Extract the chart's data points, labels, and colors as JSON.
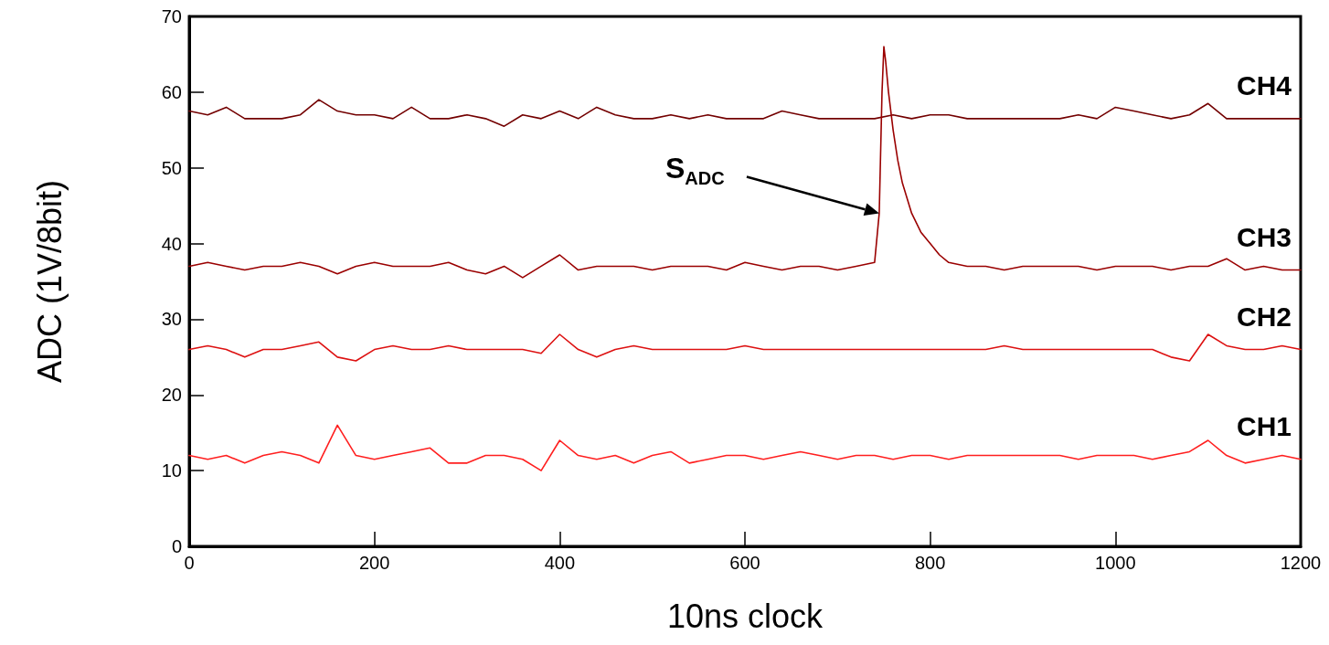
{
  "chart_data": {
    "type": "line",
    "xlabel": "10ns clock",
    "ylabel": "ADC (1V/8bit)",
    "x": [
      0,
      20,
      40,
      60,
      80,
      100,
      120,
      140,
      160,
      180,
      200,
      220,
      240,
      260,
      280,
      300,
      320,
      340,
      360,
      380,
      400,
      420,
      440,
      460,
      480,
      500,
      520,
      540,
      560,
      580,
      600,
      620,
      640,
      660,
      680,
      700,
      720,
      740,
      760,
      780,
      800,
      820,
      840,
      860,
      880,
      900,
      920,
      940,
      960,
      980,
      1000,
      1020,
      1040,
      1060,
      1080,
      1100,
      1120,
      1140,
      1160,
      1180,
      1200
    ],
    "series": [
      {
        "name": "CH4",
        "color": "#730000",
        "values": [
          57.5,
          57,
          58,
          56.5,
          56.5,
          56.5,
          57,
          59,
          57.5,
          57,
          57,
          56.5,
          58,
          56.5,
          56.5,
          57,
          56.5,
          55.5,
          57,
          56.5,
          57.5,
          56.5,
          58,
          57,
          56.5,
          56.5,
          57,
          56.5,
          57,
          56.5,
          56.5,
          56.5,
          57.5,
          57,
          56.5,
          56.5,
          56.5,
          56.5,
          57,
          56.5,
          57,
          57,
          56.5,
          56.5,
          56.5,
          56.5,
          56.5,
          56.5,
          57,
          56.5,
          58,
          57.5,
          57,
          56.5,
          57,
          58.5,
          56.5,
          56.5,
          56.5,
          56.5,
          56.5
        ]
      },
      {
        "name": "CH3",
        "color": "#9a0000",
        "x": [
          0,
          20,
          40,
          60,
          80,
          100,
          120,
          140,
          160,
          180,
          200,
          220,
          240,
          260,
          280,
          300,
          320,
          340,
          360,
          380,
          400,
          420,
          440,
          460,
          480,
          500,
          520,
          540,
          560,
          580,
          600,
          620,
          640,
          660,
          680,
          700,
          720,
          740,
          745,
          748,
          750,
          752,
          755,
          760,
          765,
          770,
          780,
          790,
          800,
          810,
          820,
          840,
          860,
          880,
          900,
          920,
          940,
          960,
          980,
          1000,
          1020,
          1040,
          1060,
          1080,
          1100,
          1120,
          1140,
          1160,
          1180,
          1200
        ],
        "values": [
          37,
          37.5,
          37,
          36.5,
          37,
          37,
          37.5,
          37,
          36,
          37,
          37.5,
          37,
          37,
          37,
          37.5,
          36.5,
          36,
          37,
          35.5,
          37,
          38.5,
          36.5,
          37,
          37,
          37,
          36.5,
          37,
          37,
          37,
          36.5,
          37.5,
          37,
          36.5,
          37,
          37,
          36.5,
          37,
          37.5,
          44,
          60,
          66,
          64,
          60,
          55,
          51,
          48,
          44,
          41.5,
          40,
          38.5,
          37.5,
          37,
          37,
          36.5,
          37,
          37,
          37,
          37,
          36.5,
          37,
          37,
          37,
          36.5,
          37,
          37,
          38,
          36.5,
          37,
          36.5,
          36.5
        ]
      },
      {
        "name": "CH2",
        "color": "#dd1111",
        "values": [
          26,
          26.5,
          26,
          25,
          26,
          26,
          26.5,
          27,
          25,
          24.5,
          26,
          26.5,
          26,
          26,
          26.5,
          26,
          26,
          26,
          26,
          25.5,
          28,
          26,
          25,
          26,
          26.5,
          26,
          26,
          26,
          26,
          26,
          26.5,
          26,
          26,
          26,
          26,
          26,
          26,
          26,
          26,
          26,
          26,
          26,
          26,
          26,
          26.5,
          26,
          26,
          26,
          26,
          26,
          26,
          26,
          26,
          25,
          24.5,
          28,
          26.5,
          26,
          26,
          26.5,
          26
        ]
      },
      {
        "name": "CH1",
        "color": "#ff1f1f",
        "values": [
          12,
          11.5,
          12,
          11,
          12,
          12.5,
          12,
          11,
          16,
          12,
          11.5,
          12,
          12.5,
          13,
          11,
          11,
          12,
          12,
          11.5,
          10,
          14,
          12,
          11.5,
          12,
          11,
          12,
          12.5,
          11,
          11.5,
          12,
          12,
          11.5,
          12,
          12.5,
          12,
          11.5,
          12,
          12,
          11.5,
          12,
          12,
          11.5,
          12,
          12,
          12,
          12,
          12,
          12,
          11.5,
          12,
          12,
          12,
          11.5,
          12,
          12.5,
          14,
          12,
          11,
          11.5,
          12,
          11.5
        ]
      }
    ],
    "xlim": [
      0,
      1200
    ],
    "xticks": [
      0,
      200,
      400,
      600,
      800,
      1000,
      1200
    ],
    "ylim": [
      0,
      70
    ],
    "yticks": [
      0,
      10,
      20,
      30,
      40,
      50,
      60,
      70
    ],
    "grid": false,
    "legend": false,
    "marker": "none",
    "line_style": "solid",
    "annotations": [
      "S$_{ADC}$"
    ]
  }
}
